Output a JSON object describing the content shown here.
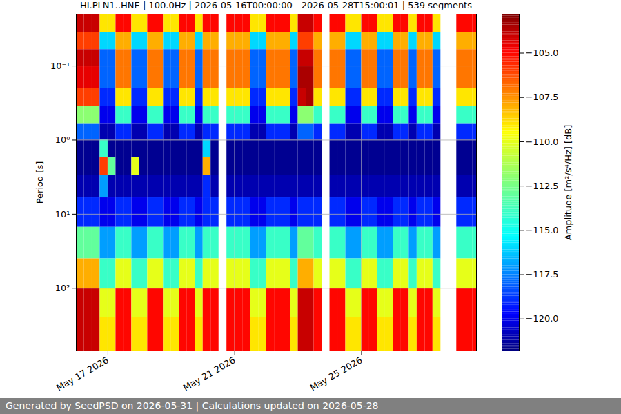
{
  "chart_data": {
    "type": "heatmap",
    "title": "HI.PLN1..HNE | 100.0Hz | 2026-05-16T00:00:00 - 2026-05-28T15:00:01 | 539 segments",
    "ylabel": "Period [s]",
    "caption": "Generated by SeedPSD on 2026-05-31 | Calculations updated on 2026-05-28",
    "color": "jet",
    "log": "y",
    "grid": true,
    "xlim": [
      "2026-05-16T00:00:00Z",
      "2026-05-28T15:00:00Z"
    ],
    "xticks": [
      {
        "value": "2026-05-17T00:00:00Z",
        "label": "May 17 2026"
      },
      {
        "value": "2026-05-21T00:00:00Z",
        "label": "May 21 2026"
      },
      {
        "value": "2026-05-25T00:00:00Z",
        "label": "May 25 2026"
      }
    ],
    "ylim": [
      0.02,
      700
    ],
    "yticks": [
      {
        "value": 0.1,
        "label": "10⁻¹"
      },
      {
        "value": 1,
        "label": "10⁰"
      },
      {
        "value": 10,
        "label": "10¹"
      },
      {
        "value": 100,
        "label": "10²"
      }
    ],
    "x": [
      "2026-05-16T00:00:00Z",
      "2026-05-16T06:00:00Z",
      "2026-05-16T12:00:00Z",
      "2026-05-16T18:00:00Z",
      "2026-05-17T00:00:00Z",
      "2026-05-17T06:00:00Z",
      "2026-05-17T12:00:00Z",
      "2026-05-17T18:00:00Z",
      "2026-05-18T00:00:00Z",
      "2026-05-18T06:00:00Z",
      "2026-05-18T12:00:00Z",
      "2026-05-18T18:00:00Z",
      "2026-05-19T00:00:00Z",
      "2026-05-19T06:00:00Z",
      "2026-05-19T12:00:00Z",
      "2026-05-19T18:00:00Z",
      "2026-05-20T00:00:00Z",
      "2026-05-20T06:00:00Z",
      "2026-05-20T12:00:00Z",
      "2026-05-20T18:00:00Z",
      "2026-05-21T00:00:00Z",
      "2026-05-21T06:00:00Z",
      "2026-05-21T12:00:00Z",
      "2026-05-21T18:00:00Z",
      "2026-05-22T00:00:00Z",
      "2026-05-22T06:00:00Z",
      "2026-05-22T12:00:00Z",
      "2026-05-22T18:00:00Z",
      "2026-05-23T00:00:00Z",
      "2026-05-23T06:00:00Z",
      "2026-05-23T12:00:00Z",
      "2026-05-23T18:00:00Z",
      "2026-05-24T00:00:00Z",
      "2026-05-24T06:00:00Z",
      "2026-05-24T12:00:00Z",
      "2026-05-24T18:00:00Z",
      "2026-05-25T00:00:00Z",
      "2026-05-25T06:00:00Z",
      "2026-05-25T12:00:00Z",
      "2026-05-25T18:00:00Z",
      "2026-05-26T00:00:00Z",
      "2026-05-26T06:00:00Z",
      "2026-05-26T12:00:00Z",
      "2026-05-26T18:00:00Z",
      "2026-05-27T00:00:00Z",
      "2026-05-27T06:00:00Z",
      "2026-05-27T12:00:00Z",
      "2026-05-27T18:00:00Z",
      "2026-05-28T00:00:00Z",
      "2026-05-28T06:00:00Z",
      "2026-05-28T12:00:00Z"
    ],
    "y_edges": [
      0.02,
      0.035,
      0.06,
      0.1,
      0.2,
      0.35,
      0.6,
      1,
      1.7,
      3,
      6,
      15,
      40,
      100,
      250,
      700
    ],
    "values": [
      [
        -104,
        -104,
        -104,
        -109,
        -109,
        -105,
        -105,
        -109,
        -109,
        -105,
        -105,
        -109,
        -109,
        -105,
        -105,
        -109,
        -105,
        -105,
        null,
        -105,
        -105,
        -105,
        -109,
        -109,
        -105,
        -105,
        -105,
        -109,
        -104,
        -104,
        -105,
        null,
        -105,
        -105,
        -109,
        -109,
        -105,
        -105,
        -109,
        -109,
        -105,
        -105,
        -109,
        -105,
        -105,
        -109,
        null,
        null,
        -105,
        -105,
        -105
      ],
      [
        -106,
        -106,
        -106,
        -116,
        -116,
        -108,
        -108,
        -116,
        -116,
        -108,
        -108,
        -116,
        -116,
        -108,
        -108,
        -116,
        -108,
        -108,
        null,
        -108,
        -108,
        -108,
        -116,
        -116,
        -108,
        -108,
        -108,
        -116,
        -106,
        -106,
        -108,
        null,
        -108,
        -108,
        -116,
        -116,
        -108,
        -108,
        -116,
        -116,
        -108,
        -108,
        -116,
        -108,
        -108,
        -116,
        null,
        null,
        -108,
        -108,
        -108
      ],
      [
        -104,
        -104,
        -104,
        -118,
        -118,
        -107,
        -107,
        -118,
        -118,
        -107,
        -107,
        -118,
        -118,
        -107,
        -107,
        -118,
        -107,
        -107,
        null,
        -107,
        -107,
        -107,
        -118,
        -118,
        -107,
        -107,
        -107,
        -118,
        -104,
        -104,
        -107,
        null,
        -107,
        -107,
        -118,
        -118,
        -107,
        -107,
        -118,
        -118,
        -107,
        -107,
        -118,
        -107,
        -107,
        -118,
        null,
        null,
        -107,
        -107,
        -107
      ],
      [
        -104.5,
        -104.5,
        -104.5,
        -118,
        -118,
        -107,
        -107,
        -118,
        -118,
        -107,
        -107,
        -118,
        -118,
        -107,
        -107,
        -118,
        -107,
        -107,
        null,
        -107,
        -107,
        -107,
        -118,
        -118,
        -107,
        -107,
        -107,
        -118,
        -103.5,
        -103.5,
        -107,
        null,
        -107,
        -107,
        -118,
        -118,
        -107,
        -107,
        -118,
        -118,
        -107,
        -107,
        -118,
        -107,
        -107,
        -118,
        null,
        null,
        -107,
        -107,
        -107
      ],
      [
        -106,
        -106,
        -106,
        -119,
        -119,
        -109,
        -109,
        -119,
        -119,
        -109,
        -109,
        -119,
        -119,
        -109,
        -109,
        -119,
        -109,
        -109,
        null,
        -109,
        -109,
        -109,
        -119,
        -119,
        -109,
        -109,
        -109,
        -119,
        -104,
        -103.5,
        -109,
        null,
        -109,
        -109,
        -119,
        -119,
        -109,
        -109,
        -119,
        -119,
        -109,
        -109,
        -119,
        -109,
        -109,
        -119,
        null,
        null,
        -109,
        -109,
        -109
      ],
      [
        -112,
        -112,
        -112,
        -120,
        -120,
        -114,
        -114,
        -120,
        -120,
        -114,
        -114,
        -120,
        -120,
        -114,
        -114,
        -120,
        -114,
        -114,
        null,
        -114,
        -114,
        -114,
        -120,
        -120,
        -114,
        -114,
        -114,
        -120,
        -112,
        -112,
        -114,
        null,
        -114,
        -114,
        -120,
        -120,
        -114,
        -114,
        -120,
        -120,
        -114,
        -114,
        -120,
        -114,
        -114,
        -120,
        null,
        null,
        -114,
        -114,
        -114
      ],
      [
        -118,
        -118,
        -118,
        -121,
        -121,
        -119,
        -119,
        -121,
        -121,
        -119,
        -119,
        -121,
        -121,
        -119,
        -119,
        -121,
        -119,
        -119,
        null,
        -119,
        -119,
        -119,
        -121,
        -121,
        -119,
        -119,
        -119,
        -121,
        -118,
        -118,
        -119,
        null,
        -119,
        -119,
        -121,
        -121,
        -119,
        -119,
        -121,
        -121,
        -119,
        -119,
        -121,
        -119,
        -119,
        -121,
        null,
        null,
        -119,
        -119,
        -119
      ],
      [
        -121.5,
        -121.5,
        -121.5,
        -114,
        -121.5,
        -121.5,
        -121.5,
        -121.5,
        -121.5,
        -121.5,
        -121.5,
        -121.5,
        -121.5,
        -121.5,
        -121.5,
        -121.5,
        -116,
        -121.5,
        null,
        -121.5,
        -121.5,
        -121.5,
        -121.5,
        -121.5,
        -121.5,
        -121.5,
        -121.5,
        -121.5,
        -121.5,
        -121.5,
        -121.5,
        null,
        -121.5,
        -121.5,
        -121.5,
        -121.5,
        -121.5,
        -121.5,
        -121.5,
        -121.5,
        -121.5,
        -121.5,
        -121.5,
        -121.5,
        -121.5,
        -121.5,
        null,
        null,
        -121.5,
        -121.5,
        -121.5
      ],
      [
        -121.5,
        -121.5,
        -121.5,
        -106,
        -113,
        -121.5,
        -121.5,
        -110,
        -121.5,
        -121.5,
        -121.5,
        -121.5,
        -121.5,
        -121.5,
        -121.5,
        -121.5,
        -108,
        -121.5,
        null,
        -121.5,
        -121.5,
        -121.5,
        -121.5,
        -121.5,
        -121.5,
        -121.5,
        -121.5,
        -121.5,
        -121.5,
        -121.5,
        -121.5,
        null,
        -121.5,
        -121.5,
        -121.5,
        -121.5,
        -121.5,
        -121.5,
        -121.5,
        -121.5,
        -121.5,
        -121.5,
        -121.5,
        -121.5,
        -121.5,
        -121.5,
        null,
        null,
        -121.5,
        -121.5,
        -121.5
      ],
      [
        -121,
        -121,
        -121,
        -117,
        -121,
        -121,
        -121,
        -121,
        -121,
        -121,
        -121,
        -121,
        -121,
        -121,
        -121,
        -121,
        -119,
        -121,
        null,
        -121,
        -121,
        -121,
        -121,
        -121,
        -121,
        -121,
        -121,
        -121,
        -121,
        -121,
        -121,
        null,
        -121,
        -121,
        -121,
        -121,
        -121,
        -121,
        -121,
        -121,
        -121,
        -121,
        -121,
        -121,
        -121,
        -121,
        null,
        null,
        -121,
        -121,
        -121
      ],
      [
        -119,
        -119,
        -119,
        -120,
        -120,
        -119,
        -119,
        -120,
        -120,
        -119,
        -119,
        -120,
        -120,
        -119,
        -119,
        -120,
        -119,
        -119,
        null,
        -119,
        -119,
        -119,
        -120,
        -120,
        -119,
        -119,
        -119,
        -120,
        -119,
        -119,
        -119,
        null,
        -119,
        -119,
        -120,
        -120,
        -119,
        -119,
        -120,
        -120,
        -119,
        -119,
        -120,
        -119,
        -119,
        -120,
        null,
        null,
        -119,
        -119,
        -119
      ],
      [
        -113,
        -113,
        -113,
        -117,
        -117,
        -114,
        -114,
        -117,
        -117,
        -114,
        -114,
        -117,
        -117,
        -114,
        -114,
        -117,
        -114,
        -114,
        null,
        -114,
        -114,
        -114,
        -117,
        -117,
        -114,
        -114,
        -114,
        -117,
        -113,
        -113,
        -114,
        null,
        -114,
        -114,
        -117,
        -117,
        -114,
        -114,
        -117,
        -117,
        -114,
        -114,
        -117,
        -114,
        -114,
        -117,
        null,
        null,
        -114,
        -114,
        -114
      ],
      [
        -108,
        -108,
        -108,
        -114,
        -114,
        -110,
        -110,
        -114,
        -114,
        -110,
        -110,
        -114,
        -114,
        -110,
        -110,
        -114,
        -110,
        -110,
        null,
        -110,
        -110,
        -110,
        -114,
        -114,
        -110,
        -110,
        -110,
        -114,
        -108,
        -108,
        -110,
        null,
        -110,
        -110,
        -114,
        -114,
        -110,
        -110,
        -114,
        -114,
        -110,
        -110,
        -114,
        -110,
        -110,
        -114,
        null,
        null,
        -110,
        -110,
        -110
      ],
      [
        -104,
        -104,
        -104,
        -110,
        -110,
        -105,
        -105,
        -110,
        -110,
        -105,
        -105,
        -110,
        -110,
        -105,
        -105,
        -110,
        -105,
        -105,
        null,
        -105,
        -105,
        -105,
        -110,
        -110,
        -105,
        -105,
        -105,
        -110,
        -104,
        -104,
        -105,
        null,
        -105,
        -105,
        -110,
        -110,
        -105,
        -105,
        -110,
        -110,
        -105,
        -105,
        -110,
        -105,
        -105,
        -110,
        null,
        null,
        -105,
        -105,
        -105
      ],
      [
        -104,
        -104,
        -104,
        -109,
        -109,
        -105,
        -105,
        -109,
        -109,
        -105,
        -105,
        -109,
        -109,
        -105,
        -105,
        -109,
        -105,
        -105,
        null,
        -105,
        -105,
        -105,
        -109,
        -109,
        -105,
        -105,
        -105,
        -109,
        -104,
        -104,
        -105,
        null,
        -105,
        -105,
        -109,
        -109,
        -105,
        -105,
        -109,
        -109,
        -105,
        -105,
        -109,
        -105,
        -105,
        -109,
        null,
        null,
        -105,
        -105,
        -105
      ]
    ],
    "colorbar": {
      "label": "Amplitude [m²/s⁴/Hz] [dB]",
      "range": [
        -121.8,
        -102.8
      ],
      "ticks": [
        {
          "value": -105,
          "label": "−105.0"
        },
        {
          "value": -107.5,
          "label": "−107.5"
        },
        {
          "value": -110,
          "label": "−110.0"
        },
        {
          "value": -112.5,
          "label": "−112.5"
        },
        {
          "value": -115,
          "label": "−115.0"
        },
        {
          "value": -117.5,
          "label": "−117.5"
        },
        {
          "value": -120,
          "label": "−120.0"
        }
      ]
    }
  }
}
